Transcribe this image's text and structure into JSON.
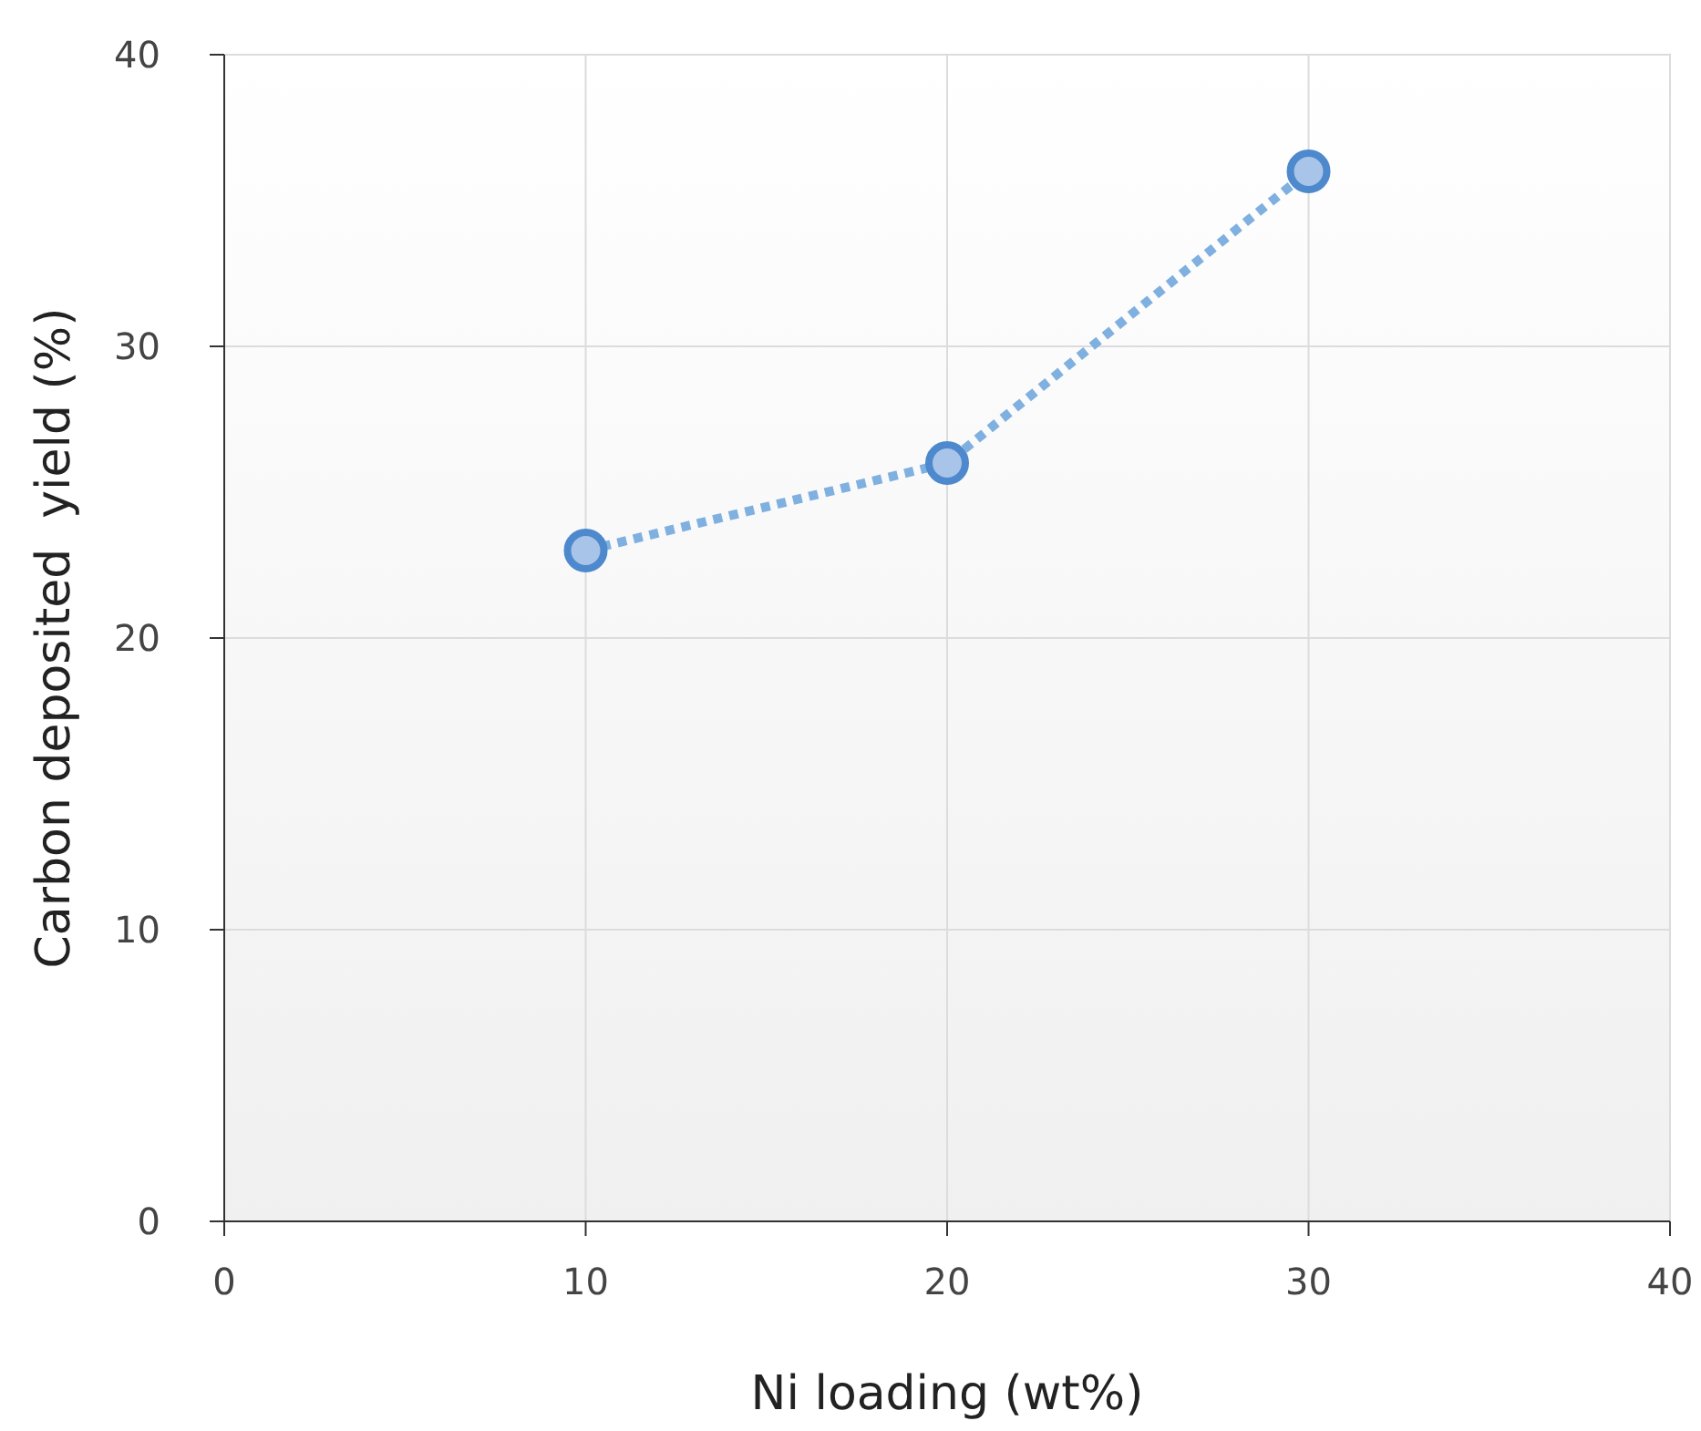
{
  "chart_data": {
    "type": "line",
    "xlabel": "Ni loading (wt%)",
    "ylabel": "Carbon deposited  yield (%)",
    "x": [
      10,
      20,
      30
    ],
    "series": [
      {
        "color": "#7fb0e0",
        "values": [
          23,
          26,
          36
        ]
      }
    ],
    "xlim": [
      0,
      40
    ],
    "ylim": [
      0,
      40
    ],
    "xticks": [
      0,
      10,
      20,
      30,
      40
    ],
    "yticks": [
      0,
      10,
      20,
      30,
      40
    ],
    "grid": true,
    "marker": "circle",
    "line_style": "dotted"
  }
}
